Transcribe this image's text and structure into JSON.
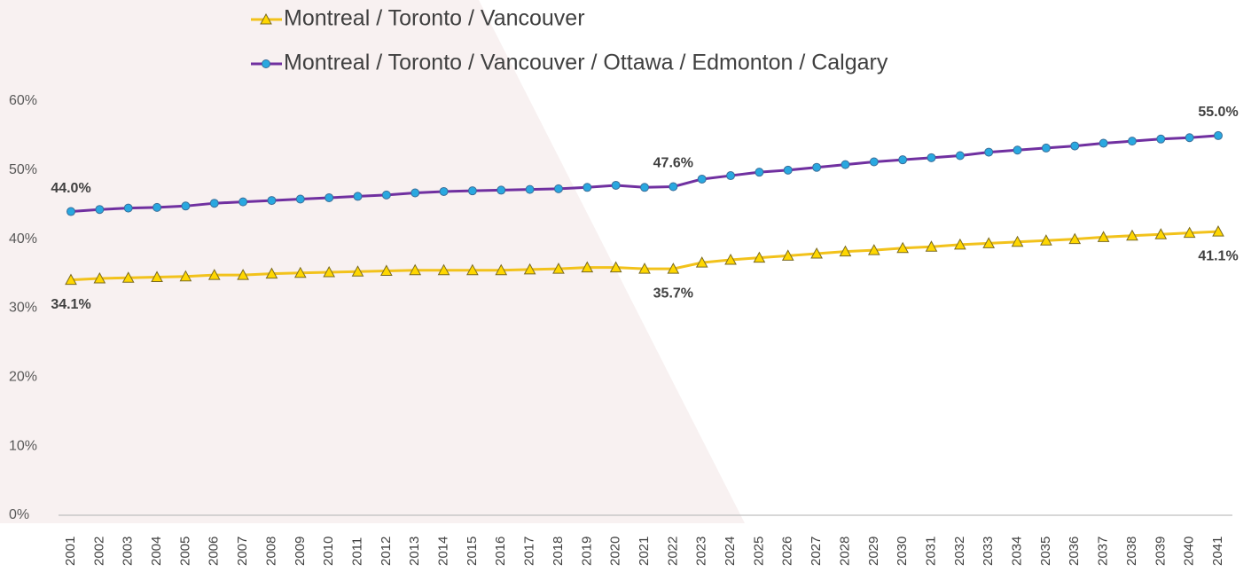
{
  "chart_data": {
    "type": "line",
    "categories": [
      "2001",
      "2002",
      "2003",
      "2004",
      "2005",
      "2006",
      "2007",
      "2008",
      "2009",
      "2010",
      "2011",
      "2012",
      "2013",
      "2014",
      "2015",
      "2016",
      "2017",
      "2018",
      "2019",
      "2020",
      "2021",
      "2022",
      "2023",
      "2024",
      "2025",
      "2026",
      "2027",
      "2028",
      "2029",
      "2030",
      "2031",
      "2032",
      "2033",
      "2034",
      "2035",
      "2036",
      "2037",
      "2038",
      "2039",
      "2040",
      "2041"
    ],
    "series": [
      {
        "name": "Montreal / Toronto / Vancouver",
        "color": "#f2c21b",
        "marker": "triangle",
        "marker_color": "#ffd700",
        "values": [
          34.1,
          34.3,
          34.4,
          34.5,
          34.6,
          34.8,
          34.8,
          35.0,
          35.1,
          35.2,
          35.3,
          35.4,
          35.5,
          35.5,
          35.5,
          35.5,
          35.6,
          35.7,
          35.9,
          35.9,
          35.7,
          35.7,
          36.6,
          37.0,
          37.3,
          37.6,
          37.9,
          38.2,
          38.4,
          38.7,
          38.9,
          39.2,
          39.4,
          39.6,
          39.8,
          40.0,
          40.3,
          40.5,
          40.7,
          40.9,
          41.1
        ],
        "value_labels": [
          "34.1%",
          null,
          null,
          null,
          null,
          null,
          null,
          null,
          null,
          null,
          null,
          null,
          null,
          null,
          null,
          null,
          null,
          null,
          null,
          null,
          null,
          "35.7%",
          null,
          null,
          null,
          null,
          null,
          null,
          null,
          null,
          null,
          null,
          null,
          null,
          null,
          null,
          null,
          null,
          null,
          null,
          "41.1%"
        ],
        "label_position": "below"
      },
      {
        "name": "Montreal / Toronto / Vancouver / Ottawa / Edmonton / Calgary",
        "color": "#7030a0",
        "marker": "circle",
        "marker_color": "#29a8e0",
        "values": [
          44.0,
          44.3,
          44.5,
          44.6,
          44.8,
          45.2,
          45.4,
          45.6,
          45.8,
          46.0,
          46.2,
          46.4,
          46.7,
          46.9,
          47.0,
          47.1,
          47.2,
          47.3,
          47.5,
          47.8,
          47.5,
          47.6,
          48.7,
          49.2,
          49.7,
          50.0,
          50.4,
          50.8,
          51.2,
          51.5,
          51.8,
          52.1,
          52.6,
          52.9,
          53.2,
          53.5,
          53.9,
          54.2,
          54.5,
          54.7,
          55.0
        ],
        "value_labels": [
          "44.0%",
          null,
          null,
          null,
          null,
          null,
          null,
          null,
          null,
          null,
          null,
          null,
          null,
          null,
          null,
          null,
          null,
          null,
          null,
          null,
          null,
          "47.6%",
          null,
          null,
          null,
          null,
          null,
          null,
          null,
          null,
          null,
          null,
          null,
          null,
          null,
          null,
          null,
          null,
          null,
          null,
          "55.0%"
        ],
        "label_position": "above"
      }
    ],
    "ylim": [
      0,
      60
    ],
    "yticks": [
      {
        "value": 0,
        "label": "0%"
      },
      {
        "value": 10,
        "label": "10%"
      },
      {
        "value": 20,
        "label": "20%"
      },
      {
        "value": 30,
        "label": "30%"
      },
      {
        "value": 40,
        "label": "40%"
      },
      {
        "value": 50,
        "label": "50%"
      },
      {
        "value": 60,
        "label": "60%"
      }
    ],
    "grid": false,
    "legend": "top"
  }
}
